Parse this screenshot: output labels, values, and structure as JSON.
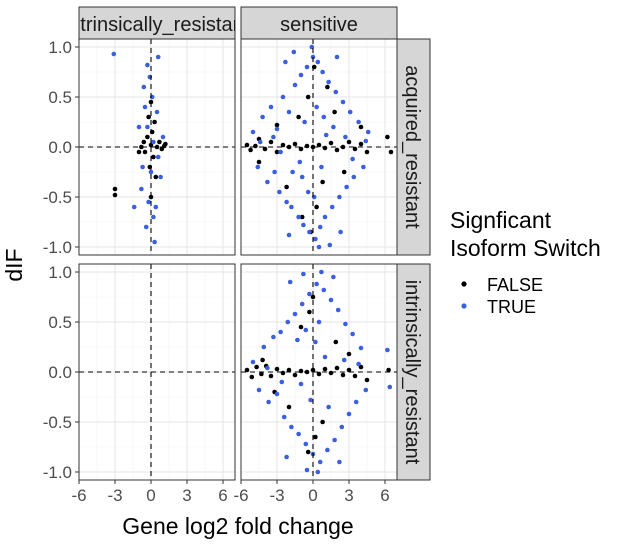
{
  "chart_data": {
    "type": "scatter",
    "facet_columns": [
      "intrinsically_resistant",
      "sensitive"
    ],
    "facet_rows": [
      "acquired_resistant",
      "intrinsically_resistant"
    ],
    "xlabel": "Gene log2 fold change",
    "ylabel": "dIF",
    "xlim": [
      -6,
      7
    ],
    "ylim": [
      -1.08,
      1.08
    ],
    "x_ticks": [
      "-6",
      "-3",
      "0",
      "3",
      "6"
    ],
    "y_ticks": [
      "-1.0",
      "-0.5",
      "0.0",
      "0.5",
      "1.0"
    ],
    "reference_lines": {
      "x": 0,
      "y": 0,
      "style": "dashed"
    },
    "grid": true,
    "legend": {
      "title_lines": [
        "Signficant",
        "Isoform Switch"
      ],
      "placement": "right",
      "entries": [
        {
          "name": "FALSE",
          "color": "#000000"
        },
        {
          "name": "TRUE",
          "color": "#3a5fe0"
        }
      ]
    },
    "panels": [
      {
        "column": "intrinsically_resistant",
        "row": "acquired_resistant",
        "series": [
          {
            "name": "FALSE",
            "color": "#000000",
            "points": [
              [
                -3.0,
                -0.42
              ],
              [
                -3.0,
                -0.48
              ],
              [
                -0.8,
                0.0
              ],
              [
                -0.6,
                0.05
              ],
              [
                -0.5,
                -0.05
              ],
              [
                -0.3,
                0.1
              ],
              [
                -0.2,
                0.3
              ],
              [
                -0.1,
                -0.2
              ],
              [
                0.0,
                0.02
              ],
              [
                0.1,
                0.15
              ],
              [
                0.2,
                -0.1
              ],
              [
                0.3,
                0.25
              ],
              [
                0.4,
                -0.3
              ],
              [
                0.5,
                0.0
              ],
              [
                0.7,
                0.05
              ],
              [
                0.9,
                -0.02
              ],
              [
                1.1,
                0.01
              ],
              [
                1.2,
                0.03
              ],
              [
                -1.0,
                -0.05
              ],
              [
                0.0,
                0.45
              ],
              [
                0.0,
                -0.5
              ]
            ]
          },
          {
            "name": "TRUE",
            "color": "#3a5fe0",
            "points": [
              [
                -3.1,
                0.93
              ],
              [
                -0.6,
                0.6
              ],
              [
                -0.3,
                0.82
              ],
              [
                0.2,
                -0.7
              ],
              [
                -0.4,
                -0.8
              ],
              [
                0.3,
                -0.95
              ],
              [
                -0.8,
                -0.42
              ],
              [
                0.6,
                0.9
              ],
              [
                -1.0,
                0.2
              ],
              [
                0.8,
                -0.3
              ],
              [
                0.1,
                0.5
              ],
              [
                -0.2,
                -0.55
              ],
              [
                0.5,
                0.35
              ],
              [
                -0.5,
                0.4
              ],
              [
                0.4,
                -0.6
              ],
              [
                -0.1,
                0.7
              ],
              [
                1.0,
                0.1
              ],
              [
                -0.7,
                -0.2
              ],
              [
                0.2,
                0.05
              ],
              [
                0.0,
                -0.25
              ],
              [
                -0.3,
                0.2
              ],
              [
                0.6,
                -0.1
              ],
              [
                -1.4,
                -0.6
              ]
            ]
          }
        ]
      },
      {
        "column": "sensitive",
        "row": "acquired_resistant",
        "series": [
          {
            "name": "FALSE",
            "color": "#000000",
            "points": [
              [
                -5.5,
                0.02
              ],
              [
                -5.2,
                -0.03
              ],
              [
                -4.8,
                0.01
              ],
              [
                -4.5,
                0.08
              ],
              [
                -4.0,
                -0.02
              ],
              [
                -3.5,
                0.05
              ],
              [
                -3.0,
                -0.05
              ],
              [
                -2.5,
                0.02
              ],
              [
                -2.0,
                0.0
              ],
              [
                -1.5,
                0.03
              ],
              [
                -1.0,
                -0.02
              ],
              [
                -0.5,
                0.01
              ],
              [
                0.0,
                0.0
              ],
              [
                0.5,
                0.02
              ],
              [
                1.0,
                -0.01
              ],
              [
                1.5,
                0.04
              ],
              [
                2.0,
                -0.03
              ],
              [
                2.5,
                0.0
              ],
              [
                3.0,
                0.05
              ],
              [
                3.5,
                -0.02
              ],
              [
                4.0,
                0.03
              ],
              [
                4.5,
                -0.05
              ],
              [
                6.2,
                0.1
              ],
              [
                6.5,
                -0.05
              ],
              [
                -1.2,
                0.3
              ],
              [
                0.8,
                -0.35
              ],
              [
                -0.4,
                0.5
              ],
              [
                0.3,
                -0.6
              ],
              [
                -2.2,
                -0.4
              ],
              [
                1.8,
                0.35
              ],
              [
                -0.9,
                -0.7
              ],
              [
                1.2,
                0.6
              ],
              [
                -4.5,
                -0.15
              ],
              [
                4.0,
                0.2
              ],
              [
                0.1,
                0.8
              ],
              [
                -0.2,
                -0.85
              ],
              [
                2.6,
                -0.25
              ],
              [
                -3.0,
                0.22
              ]
            ]
          },
          {
            "name": "TRUE",
            "color": "#3a5fe0",
            "points": [
              [
                -5.0,
                0.15
              ],
              [
                -4.6,
                -0.2
              ],
              [
                -4.2,
                0.3
              ],
              [
                -3.8,
                -0.35
              ],
              [
                -3.5,
                0.4
              ],
              [
                -3.2,
                -0.25
              ],
              [
                -3.0,
                0.18
              ],
              [
                -2.8,
                -0.45
              ],
              [
                -2.5,
                0.5
              ],
              [
                -2.2,
                -0.55
              ],
              [
                -2.0,
                0.35
              ],
              [
                -1.8,
                -0.6
              ],
              [
                -1.5,
                0.62
              ],
              [
                -1.2,
                -0.7
              ],
              [
                -1.0,
                0.72
              ],
              [
                -0.8,
                -0.78
              ],
              [
                -0.5,
                0.8
              ],
              [
                -0.3,
                -0.85
              ],
              [
                0.0,
                0.9
              ],
              [
                0.2,
                -0.92
              ],
              [
                0.4,
                0.85
              ],
              [
                0.6,
                -0.8
              ],
              [
                0.8,
                0.75
              ],
              [
                1.0,
                -0.7
              ],
              [
                1.3,
                0.65
              ],
              [
                1.6,
                -0.6
              ],
              [
                1.9,
                0.55
              ],
              [
                2.2,
                -0.5
              ],
              [
                2.5,
                0.45
              ],
              [
                2.8,
                -0.4
              ],
              [
                3.1,
                0.35
              ],
              [
                3.4,
                -0.3
              ],
              [
                3.8,
                0.25
              ],
              [
                4.2,
                -0.2
              ],
              [
                4.6,
                0.15
              ],
              [
                -1.6,
                0.95
              ],
              [
                1.4,
                -0.98
              ],
              [
                -0.1,
                1.0
              ],
              [
                0.5,
                -1.0
              ],
              [
                2.0,
                0.9
              ],
              [
                -2.3,
                0.85
              ],
              [
                -2.0,
                -0.88
              ],
              [
                2.3,
                -0.85
              ],
              [
                -0.7,
                0.25
              ],
              [
                0.7,
                -0.2
              ],
              [
                -1.1,
                -0.15
              ],
              [
                1.1,
                0.12
              ],
              [
                0.3,
                0.4
              ],
              [
                -0.4,
                -0.45
              ],
              [
                -3.3,
                0.1
              ],
              [
                3.3,
                -0.12
              ],
              [
                -4.4,
                0.05
              ],
              [
                4.4,
                0.06
              ],
              [
                0.9,
                0.3
              ],
              [
                -0.9,
                -0.3
              ],
              [
                1.7,
                0.2
              ],
              [
                -1.7,
                -0.25
              ],
              [
                2.7,
                0.1
              ],
              [
                -2.7,
                -0.05
              ],
              [
                0.1,
                -0.5
              ]
            ]
          }
        ]
      },
      {
        "column": "intrinsically_resistant",
        "row": "intrinsically_resistant",
        "series": []
      },
      {
        "column": "sensitive",
        "row": "intrinsically_resistant",
        "series": [
          {
            "name": "FALSE",
            "color": "#000000",
            "points": [
              [
                -5.5,
                0.02
              ],
              [
                -5.1,
                -0.05
              ],
              [
                -4.7,
                0.05
              ],
              [
                -4.3,
                -0.02
              ],
              [
                -3.9,
                0.06
              ],
              [
                -3.5,
                -0.04
              ],
              [
                -3.0,
                0.03
              ],
              [
                -2.5,
                -0.01
              ],
              [
                -2.0,
                0.02
              ],
              [
                -1.5,
                -0.03
              ],
              [
                -1.0,
                0.01
              ],
              [
                -0.5,
                0.0
              ],
              [
                0.0,
                0.02
              ],
              [
                0.5,
                -0.02
              ],
              [
                1.0,
                0.03
              ],
              [
                1.5,
                -0.01
              ],
              [
                2.0,
                0.04
              ],
              [
                2.5,
                -0.03
              ],
              [
                3.0,
                0.02
              ],
              [
                3.5,
                -0.04
              ],
              [
                4.0,
                0.05
              ],
              [
                6.3,
                0.02
              ],
              [
                -1.0,
                0.45
              ],
              [
                0.8,
                -0.5
              ],
              [
                -0.3,
                0.6
              ],
              [
                0.2,
                -0.65
              ],
              [
                -2.0,
                -0.35
              ],
              [
                1.9,
                0.3
              ],
              [
                -3.2,
                -0.2
              ],
              [
                3.0,
                0.18
              ],
              [
                0.0,
                0.75
              ],
              [
                -0.4,
                -0.8
              ],
              [
                -4.2,
                0.12
              ],
              [
                4.5,
                -0.08
              ]
            ]
          },
          {
            "name": "TRUE",
            "color": "#3a5fe0",
            "points": [
              [
                -5.0,
                0.1
              ],
              [
                -4.5,
                -0.18
              ],
              [
                -4.1,
                0.25
              ],
              [
                -3.7,
                -0.3
              ],
              [
                -3.3,
                0.35
              ],
              [
                -3.0,
                -0.22
              ],
              [
                -2.7,
                0.4
              ],
              [
                -2.4,
                -0.45
              ],
              [
                -2.1,
                0.5
              ],
              [
                -1.8,
                -0.55
              ],
              [
                -1.5,
                0.58
              ],
              [
                -1.2,
                -0.62
              ],
              [
                -0.9,
                0.68
              ],
              [
                -0.6,
                -0.72
              ],
              [
                -0.3,
                0.78
              ],
              [
                0.0,
                -0.82
              ],
              [
                0.3,
                0.88
              ],
              [
                0.6,
                -0.9
              ],
              [
                0.9,
                0.82
              ],
              [
                1.2,
                -0.78
              ],
              [
                1.5,
                0.72
              ],
              [
                1.8,
                -0.68
              ],
              [
                2.1,
                0.62
              ],
              [
                2.4,
                -0.55
              ],
              [
                2.7,
                0.48
              ],
              [
                3.0,
                -0.42
              ],
              [
                3.3,
                0.38
              ],
              [
                3.6,
                -0.3
              ],
              [
                4.0,
                0.24
              ],
              [
                4.4,
                -0.18
              ],
              [
                6.2,
                0.22
              ],
              [
                6.4,
                -0.15
              ],
              [
                -0.8,
                0.98
              ],
              [
                0.7,
                1.0
              ],
              [
                -0.5,
                -0.98
              ],
              [
                0.4,
                -1.0
              ],
              [
                1.7,
                0.95
              ],
              [
                -1.9,
                0.9
              ],
              [
                2.2,
                -0.9
              ],
              [
                -2.2,
                -0.85
              ],
              [
                0.2,
                0.3
              ],
              [
                -0.2,
                -0.28
              ],
              [
                1.0,
                0.15
              ],
              [
                -1.0,
                -0.12
              ],
              [
                2.6,
                0.12
              ],
              [
                -2.6,
                -0.1
              ],
              [
                3.8,
                0.08
              ],
              [
                -3.8,
                0.04
              ],
              [
                0.5,
                0.5
              ],
              [
                -0.6,
                0.42
              ],
              [
                1.3,
                -0.35
              ],
              [
                -1.3,
                0.32
              ]
            ]
          }
        ]
      }
    ]
  }
}
